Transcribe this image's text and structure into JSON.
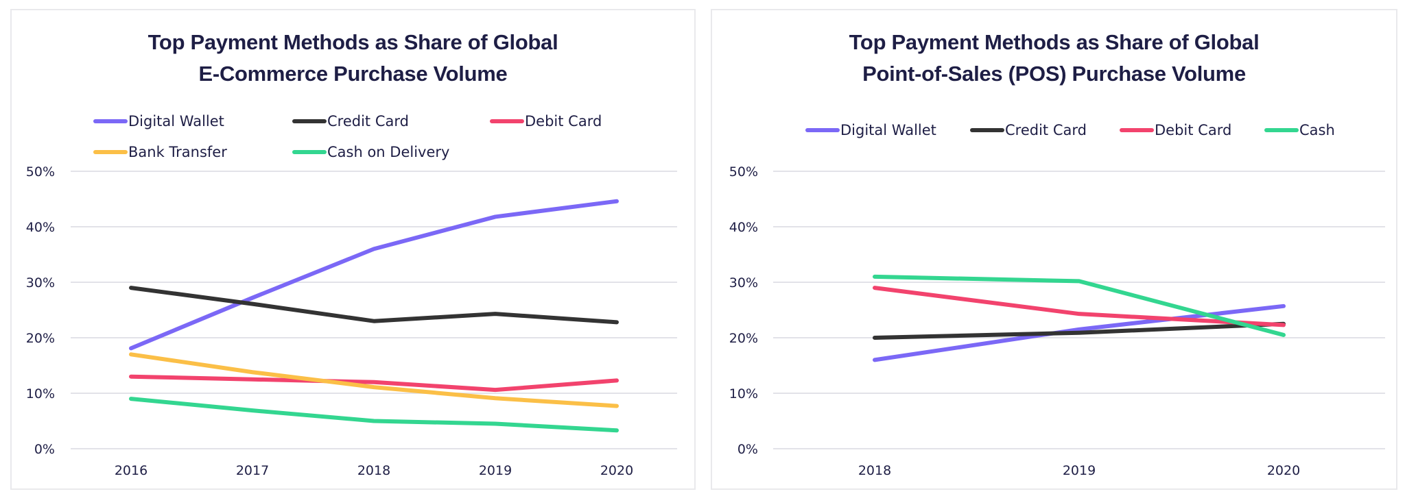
{
  "chart_data": [
    {
      "type": "line",
      "title": "Top Payment Methods as Share of Global E-Commerce Purchase Volume",
      "title_lines": [
        "Top Payment Methods as Share of Global",
        "E-Commerce Purchase Volume"
      ],
      "xlabel": "",
      "ylabel": "",
      "x": [
        "2016",
        "2017",
        "2018",
        "2019",
        "2020"
      ],
      "ylim": [
        0,
        50
      ],
      "yticks": [
        0,
        10,
        20,
        30,
        40,
        50
      ],
      "ytick_labels": [
        "0%",
        "10%",
        "20%",
        "30%",
        "40%",
        "50%"
      ],
      "grid": true,
      "legend_position": "top",
      "series": [
        {
          "name": "Digital Wallet",
          "color": "#7b68f6",
          "values": [
            18.1,
            27.2,
            36.0,
            41.8,
            44.6
          ]
        },
        {
          "name": "Credit Card",
          "color": "#333333",
          "values": [
            29.0,
            26.1,
            23.0,
            24.3,
            22.8
          ]
        },
        {
          "name": "Debit Card",
          "color": "#f2436d",
          "values": [
            13.0,
            12.5,
            12.0,
            10.6,
            12.3
          ]
        },
        {
          "name": "Bank Transfer",
          "color": "#fbbf47",
          "values": [
            17.0,
            13.8,
            11.1,
            9.1,
            7.7
          ]
        },
        {
          "name": "Cash on Delivery",
          "color": "#33d690",
          "values": [
            9.0,
            6.9,
            5.0,
            4.5,
            3.3
          ]
        }
      ]
    },
    {
      "type": "line",
      "title": "Top Payment Methods as Share of Global Point-of-Sales (POS) Purchase Volume",
      "title_lines": [
        "Top Payment Methods as Share of Global",
        "Point-of-Sales (POS) Purchase Volume"
      ],
      "xlabel": "",
      "ylabel": "",
      "x": [
        "2018",
        "2019",
        "2020"
      ],
      "ylim": [
        0,
        50
      ],
      "yticks": [
        0,
        10,
        20,
        30,
        40,
        50
      ],
      "ytick_labels": [
        "0%",
        "10%",
        "20%",
        "30%",
        "40%",
        "50%"
      ],
      "grid": true,
      "legend_position": "top",
      "series": [
        {
          "name": "Digital Wallet",
          "color": "#7b68f6",
          "values": [
            16.0,
            21.5,
            25.7
          ]
        },
        {
          "name": "Credit Card",
          "color": "#333333",
          "values": [
            20.0,
            20.9,
            22.5
          ]
        },
        {
          "name": "Debit Card",
          "color": "#f2436d",
          "values": [
            29.0,
            24.3,
            22.3
          ]
        },
        {
          "name": "Cash",
          "color": "#33d690",
          "values": [
            31.0,
            30.2,
            20.5
          ]
        }
      ]
    }
  ]
}
